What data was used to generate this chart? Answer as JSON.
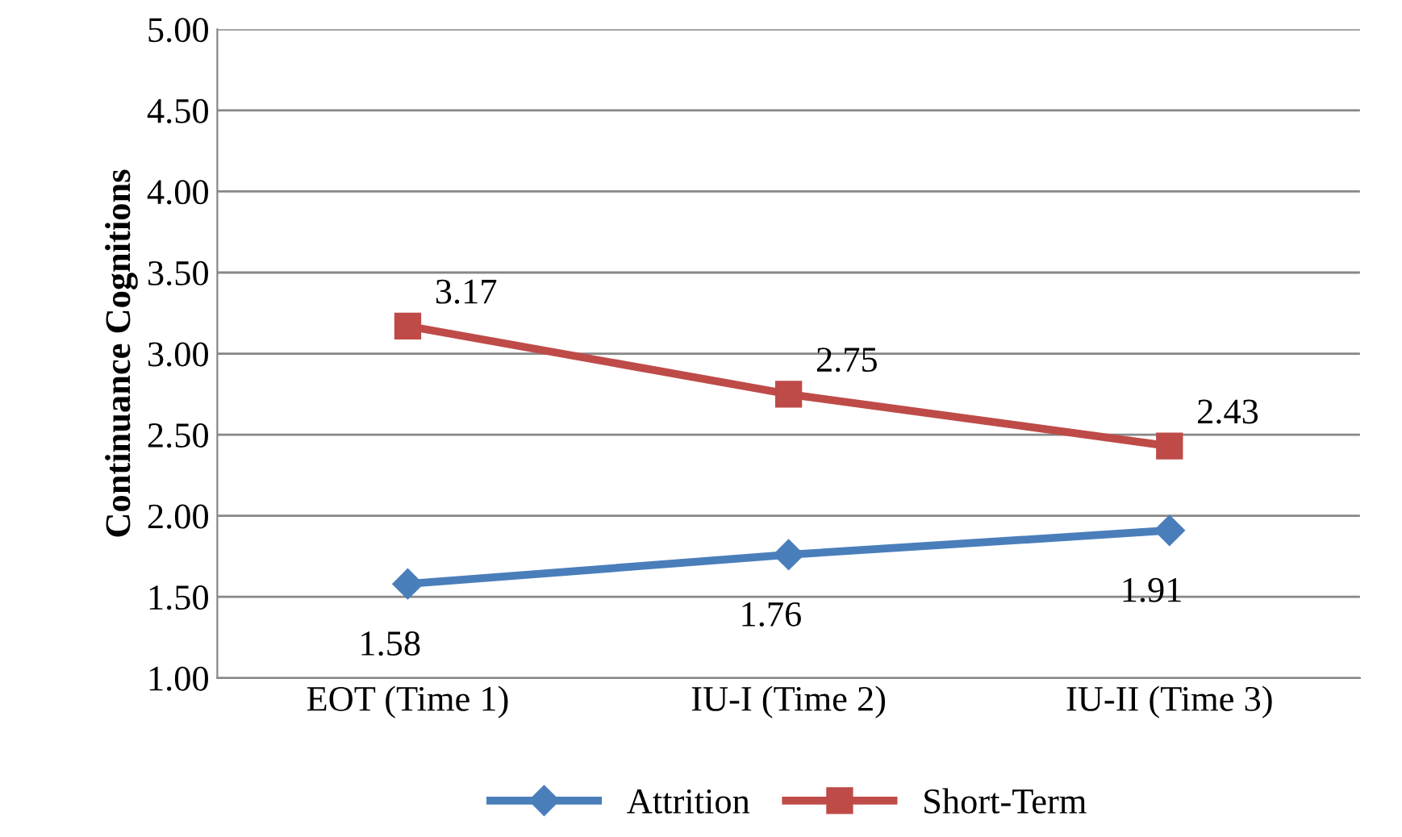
{
  "chart_data": {
    "type": "line",
    "ylabel": "Continuance Cognitions",
    "categories": [
      "EOT (Time 1)",
      "IU-I (Time 2)",
      "IU-II (Time 3)"
    ],
    "series": [
      {
        "name": "Attrition",
        "color": "#4a7ebb",
        "marker": "diamond",
        "values": [
          1.58,
          1.76,
          1.91
        ]
      },
      {
        "name": "Short-Term",
        "color": "#be4b48",
        "marker": "square",
        "values": [
          3.17,
          2.75,
          2.43
        ]
      }
    ],
    "ylim": [
      1,
      5
    ],
    "yticks": [
      {
        "value": 1,
        "label": "1.00"
      },
      {
        "value": 1.5,
        "label": "1.50"
      },
      {
        "value": 2,
        "label": "2.00"
      },
      {
        "value": 2.5,
        "label": "2.50"
      },
      {
        "value": 3,
        "label": "3.00"
      },
      {
        "value": 3.5,
        "label": "3.50"
      },
      {
        "value": 4,
        "label": "4.00"
      },
      {
        "value": 4.5,
        "label": "4.50"
      },
      {
        "value": 5,
        "label": "5.00"
      }
    ],
    "grid": "y",
    "legend": "bottom",
    "data_labels": true,
    "line_style": "solid"
  }
}
